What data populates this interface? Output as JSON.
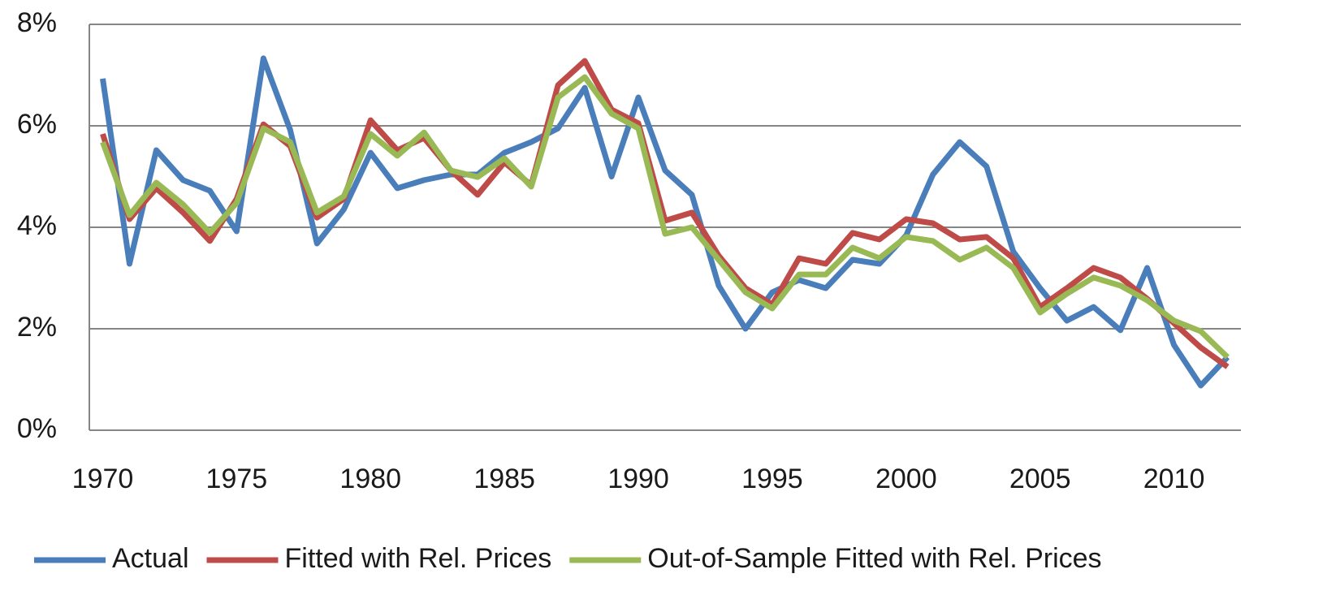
{
  "chart_data": {
    "type": "line",
    "x": [
      1970,
      1971,
      1972,
      1973,
      1974,
      1975,
      1976,
      1977,
      1978,
      1979,
      1980,
      1981,
      1982,
      1983,
      1984,
      1985,
      1986,
      1987,
      1988,
      1989,
      1990,
      1991,
      1992,
      1993,
      1994,
      1995,
      1996,
      1997,
      1998,
      1999,
      2000,
      2001,
      2002,
      2003,
      2004,
      2005,
      2006,
      2007,
      2008,
      2009,
      2010,
      2011,
      2012
    ],
    "xlim": [
      1969.5,
      2012.5
    ],
    "xticks": [
      1970,
      1975,
      1980,
      1985,
      1990,
      1995,
      2000,
      2005,
      2010
    ],
    "ylim": [
      0,
      8
    ],
    "yticks": [
      {
        "value": 0,
        "label": "0%"
      },
      {
        "value": 2,
        "label": "2%"
      },
      {
        "value": 4,
        "label": "4%"
      },
      {
        "value": 6,
        "label": "6%"
      },
      {
        "value": 8,
        "label": "8%"
      }
    ],
    "grid": true,
    "legend": "bottom",
    "series": [
      {
        "name": "Actual",
        "color": "#4a7ebb",
        "values": [
          6.93,
          3.28,
          5.52,
          4.93,
          4.72,
          3.92,
          7.33,
          5.92,
          3.68,
          4.35,
          5.47,
          4.77,
          4.93,
          5.04,
          5.04,
          5.47,
          5.68,
          5.95,
          6.75,
          5.0,
          6.56,
          5.12,
          4.64,
          2.85,
          2.0,
          2.72,
          2.96,
          2.8,
          3.36,
          3.28,
          3.84,
          5.04,
          5.68,
          5.2,
          3.52,
          2.8,
          2.16,
          2.43,
          1.97,
          3.2,
          1.68,
          0.88,
          1.44
        ]
      },
      {
        "name": "Fitted with Rel. Prices",
        "color": "#be4b48",
        "values": [
          5.84,
          4.16,
          4.77,
          4.29,
          3.73,
          4.56,
          6.03,
          5.6,
          4.19,
          4.56,
          6.11,
          5.52,
          5.76,
          5.12,
          4.64,
          5.28,
          4.83,
          6.8,
          7.28,
          6.32,
          6.05,
          4.13,
          4.29,
          3.44,
          2.8,
          2.48,
          3.39,
          3.28,
          3.89,
          3.76,
          4.16,
          4.08,
          3.76,
          3.81,
          3.39,
          2.43,
          2.8,
          3.2,
          3.01,
          2.59,
          2.11,
          1.63,
          1.25
        ]
      },
      {
        "name": "Out-of-Sample Fitted with Rel. Prices",
        "color": "#98b954",
        "values": [
          5.68,
          4.24,
          4.88,
          4.45,
          3.89,
          4.48,
          5.95,
          5.68,
          4.29,
          4.61,
          5.84,
          5.41,
          5.87,
          5.12,
          4.99,
          5.36,
          4.8,
          6.56,
          6.96,
          6.24,
          5.95,
          3.87,
          4.0,
          3.36,
          2.72,
          2.4,
          3.07,
          3.07,
          3.6,
          3.39,
          3.81,
          3.73,
          3.36,
          3.6,
          3.2,
          2.32,
          2.69,
          3.01,
          2.85,
          2.56,
          2.16,
          1.95,
          1.44
        ]
      }
    ]
  }
}
